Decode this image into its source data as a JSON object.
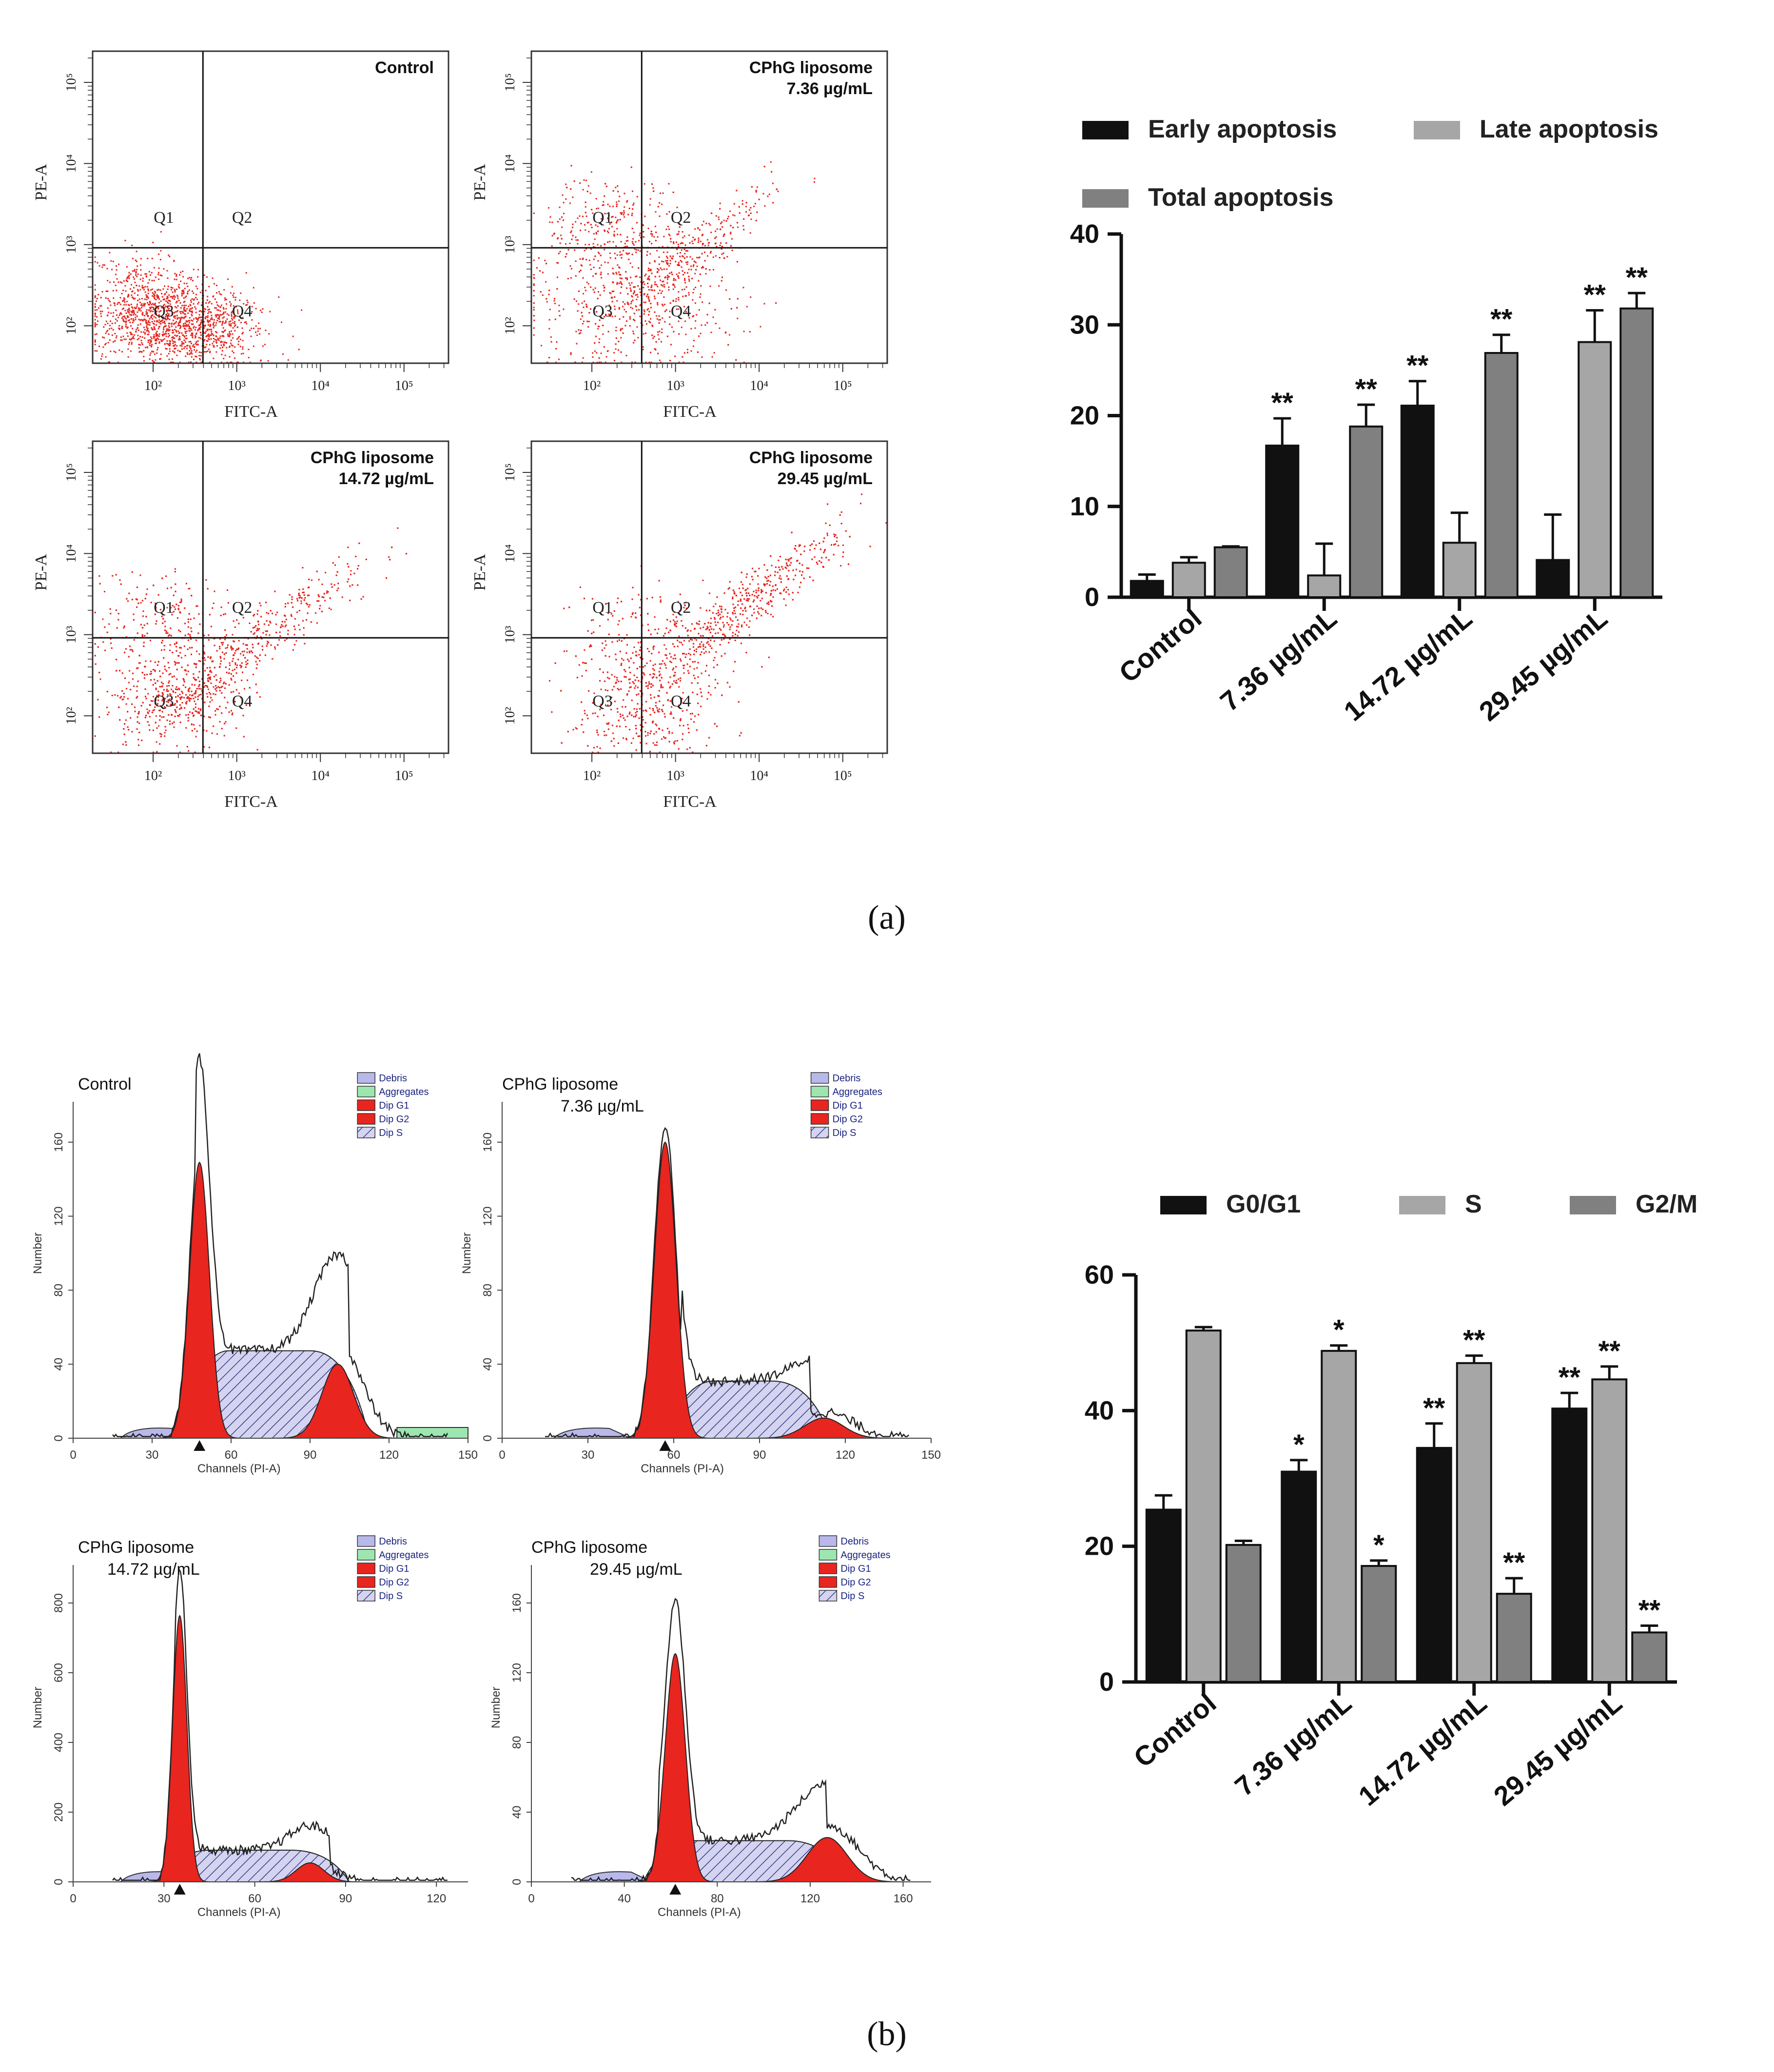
{
  "panel_a_label": "(a)",
  "panel_b_label": "(b)",
  "scatter_plots": [
    {
      "label1": "Control",
      "label2": "",
      "xlabel": "FITC-A",
      "ylabel": "PE-A",
      "quadrants": [
        "Q1",
        "Q2",
        "Q3",
        "Q4"
      ]
    },
    {
      "label1": "CPhG liposome",
      "label2": "7.36 µg/mL",
      "xlabel": "FITC-A",
      "ylabel": "PE-A",
      "quadrants": [
        "Q1",
        "Q2",
        "Q3",
        "Q4"
      ]
    },
    {
      "label1": "CPhG liposome",
      "label2": "14.72 µg/mL",
      "xlabel": "FITC-A",
      "ylabel": "PE-A",
      "quadrants": [
        "Q1",
        "Q2",
        "Q3",
        "Q4"
      ]
    },
    {
      "label1": "CPhG liposome",
      "label2": "29.45 µg/mL",
      "xlabel": "FITC-A",
      "ylabel": "PE-A",
      "quadrants": [
        "Q1",
        "Q2",
        "Q3",
        "Q4"
      ]
    }
  ],
  "scatter_ticks": {
    "x": [
      "10²",
      "10³",
      "10⁴",
      "10⁵"
    ],
    "y": [
      "10²",
      "10³",
      "10⁴",
      "10⁵"
    ]
  },
  "histograms": [
    {
      "label1": "Control",
      "label2": "",
      "xlabel": "Channels (PI-A)",
      "ylabel": "Number",
      "xticks": [
        "0",
        "30",
        "60",
        "90",
        "120",
        "150"
      ],
      "yticks": [
        "0",
        "40",
        "80",
        "120",
        "160"
      ],
      "legend": [
        "Debris",
        "Aggregates",
        "Dip G1",
        "Dip G2",
        "Dip S"
      ]
    },
    {
      "label1": "CPhG liposome",
      "label2": "7.36 µg/mL",
      "xlabel": "Channels (PI-A)",
      "ylabel": "Number",
      "xticks": [
        "0",
        "30",
        "60",
        "90",
        "120",
        "150"
      ],
      "yticks": [
        "0",
        "40",
        "80",
        "120",
        "160"
      ],
      "legend": [
        "Debris",
        "Aggregates",
        "Dip G1",
        "Dip G2",
        "Dip S"
      ]
    },
    {
      "label1": "CPhG liposome",
      "label2": "14.72 µg/mL",
      "xlabel": "Channels (PI-A)",
      "ylabel": "Number",
      "xticks": [
        "0",
        "30",
        "60",
        "90",
        "120"
      ],
      "yticks": [
        "0",
        "200",
        "400",
        "600",
        "800"
      ],
      "legend": [
        "Debris",
        "Aggregates",
        "Dip G1",
        "Dip G2",
        "Dip S"
      ]
    },
    {
      "label1": "CPhG liposome",
      "label2": "29.45 µg/mL",
      "xlabel": "Channels (PI-A)",
      "ylabel": "Number",
      "xticks": [
        "0",
        "40",
        "80",
        "120",
        "160"
      ],
      "yticks": [
        "0",
        "40",
        "80",
        "120",
        "160"
      ],
      "legend": [
        "Debris",
        "Aggregates",
        "Dip G1",
        "Dip G2",
        "Dip S"
      ]
    }
  ],
  "chart_data": [
    {
      "type": "bar",
      "categories": [
        "Control",
        "7.36 µg/mL",
        "14.72 µg/mL",
        "29.45 µg/mL"
      ],
      "series": [
        {
          "name": "Early apoptosis",
          "color": "#111111",
          "values": [
            1.8,
            16.7,
            21.1,
            4.1
          ],
          "errors": [
            0.7,
            3.0,
            2.7,
            5.0
          ],
          "sig": [
            "",
            "**",
            "**",
            ""
          ]
        },
        {
          "name": "Late apoptosis",
          "color": "#a6a6a6",
          "values": [
            3.8,
            2.4,
            6.0,
            28.1
          ],
          "errors": [
            0.6,
            3.5,
            3.3,
            3.5
          ],
          "sig": [
            "",
            "",
            "",
            "**"
          ]
        },
        {
          "name": "Total apoptosis",
          "color": "#808080",
          "values": [
            5.5,
            18.8,
            26.9,
            31.8
          ],
          "errors": [
            0.1,
            2.4,
            2.0,
            1.7
          ],
          "sig": [
            "",
            "**",
            "**",
            "**"
          ]
        }
      ],
      "yticks": [
        "0",
        "10",
        "20",
        "30",
        "40"
      ],
      "ylim": [
        0,
        40
      ],
      "legend": "top"
    },
    {
      "type": "bar",
      "categories": [
        "Control",
        "7.36 µg/mL",
        "14.72 µg/mL",
        "29.45 µg/mL"
      ],
      "series": [
        {
          "name": "G0/G1",
          "color": "#111111",
          "values": [
            25.4,
            31.0,
            34.5,
            40.3
          ],
          "errors": [
            2.1,
            1.7,
            3.6,
            2.3
          ],
          "sig": [
            "",
            "*",
            "**",
            "**"
          ]
        },
        {
          "name": "S",
          "color": "#a6a6a6",
          "values": [
            51.8,
            48.8,
            47.0,
            44.6
          ],
          "errors": [
            0.5,
            0.8,
            1.1,
            1.9
          ],
          "sig": [
            "",
            "*",
            "**",
            "**"
          ]
        },
        {
          "name": "G2/M",
          "color": "#808080",
          "values": [
            20.2,
            17.1,
            13.0,
            7.3
          ],
          "errors": [
            0.6,
            0.8,
            2.3,
            1.0
          ],
          "sig": [
            "",
            "*",
            "**",
            "**"
          ]
        }
      ],
      "yticks": [
        "0",
        "20",
        "40",
        "60"
      ],
      "ylim": [
        0,
        60
      ],
      "legend": "top"
    }
  ]
}
